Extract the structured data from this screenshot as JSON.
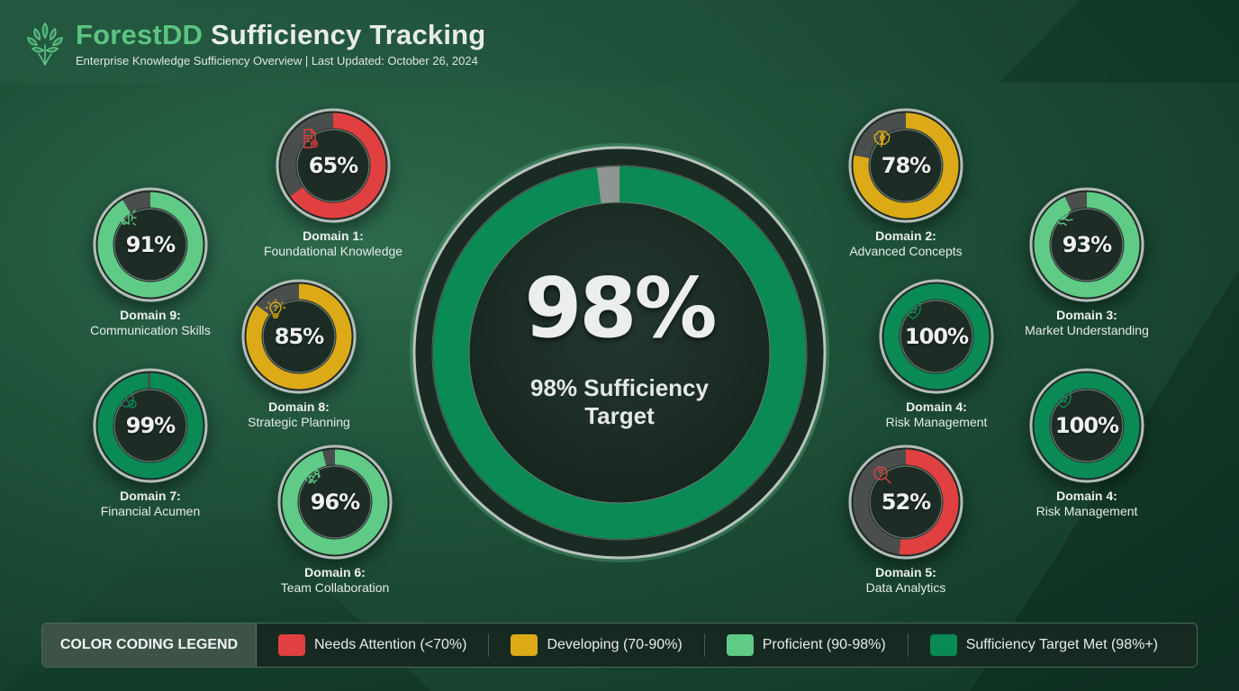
{
  "header": {
    "brand": "ForestDD",
    "title_rest": " Sufficiency Tracking",
    "subtitle": "Enterprise Knowledge Sufficiency Overview | Last Updated: October 26, 2024",
    "logo_icon": "tree-icon"
  },
  "center": {
    "value": "98%",
    "percent": 98,
    "label_line1": "98% Sufficiency",
    "label_line2": "Target",
    "color": "#0a8a55"
  },
  "colors": {
    "needs_attention": "#e0403f",
    "developing": "#dcaa17",
    "proficient": "#5fcb86",
    "target_met": "#0a8a55",
    "track": "#4a4e4c"
  },
  "domains": [
    {
      "id": "d1",
      "name": "Domain 1:",
      "title": "Foundational Knowledge",
      "value": "65%",
      "percent": 65,
      "status": "needs_attention",
      "icon": "document-icon"
    },
    {
      "id": "d2",
      "name": "Domain 2:",
      "title": "Advanced Concepts",
      "value": "78%",
      "percent": 78,
      "status": "developing",
      "icon": "brain-icon"
    },
    {
      "id": "d3",
      "name": "Domain 3:",
      "title": "Market Understanding",
      "value": "93%",
      "percent": 93,
      "status": "proficient",
      "icon": "globe-handshake-icon"
    },
    {
      "id": "d4a",
      "name": "Domain 4:",
      "title": "Risk Management",
      "value": "100%",
      "percent": 100,
      "status": "target_met",
      "icon": "shield-star-icon"
    },
    {
      "id": "d4b",
      "name": "Domain 4:",
      "title": "Risk Management",
      "value": "100%",
      "percent": 100,
      "status": "target_met",
      "icon": "shield-star-icon"
    },
    {
      "id": "d5",
      "name": "Domain 5:",
      "title": "Data Analytics",
      "value": "52%",
      "percent": 52,
      "status": "needs_attention",
      "icon": "search-question-icon"
    },
    {
      "id": "d6",
      "name": "Domain 6:",
      "title": "Team Collaboration",
      "value": "96%",
      "percent": 96,
      "status": "proficient",
      "icon": "team-icon"
    },
    {
      "id": "d7",
      "name": "Domain 7:",
      "title": "Financial Acumen",
      "value": "99%",
      "percent": 99,
      "status": "target_met",
      "icon": "stopwatch-coin-icon"
    },
    {
      "id": "d8",
      "name": "Domain 8:",
      "title": "Strategic Planning",
      "value": "85%",
      "percent": 85,
      "status": "developing",
      "icon": "lightbulb-icon"
    },
    {
      "id": "d9",
      "name": "Domain 9:",
      "title": "Communication Skills",
      "value": "91%",
      "percent": 91,
      "status": "proficient",
      "icon": "megaphone-icon"
    }
  ],
  "legend": {
    "title": "COLOR CODING LEGEND",
    "items": [
      {
        "label": "Needs Attention (<70%)",
        "color": "#e0403f"
      },
      {
        "label": "Developing (70-90%)",
        "color": "#dcaa17"
      },
      {
        "label": "Proficient (90-98%)",
        "color": "#5fcb86"
      },
      {
        "label": "Sufficiency Target Met (98%+)",
        "color": "#0a8a55"
      }
    ]
  }
}
